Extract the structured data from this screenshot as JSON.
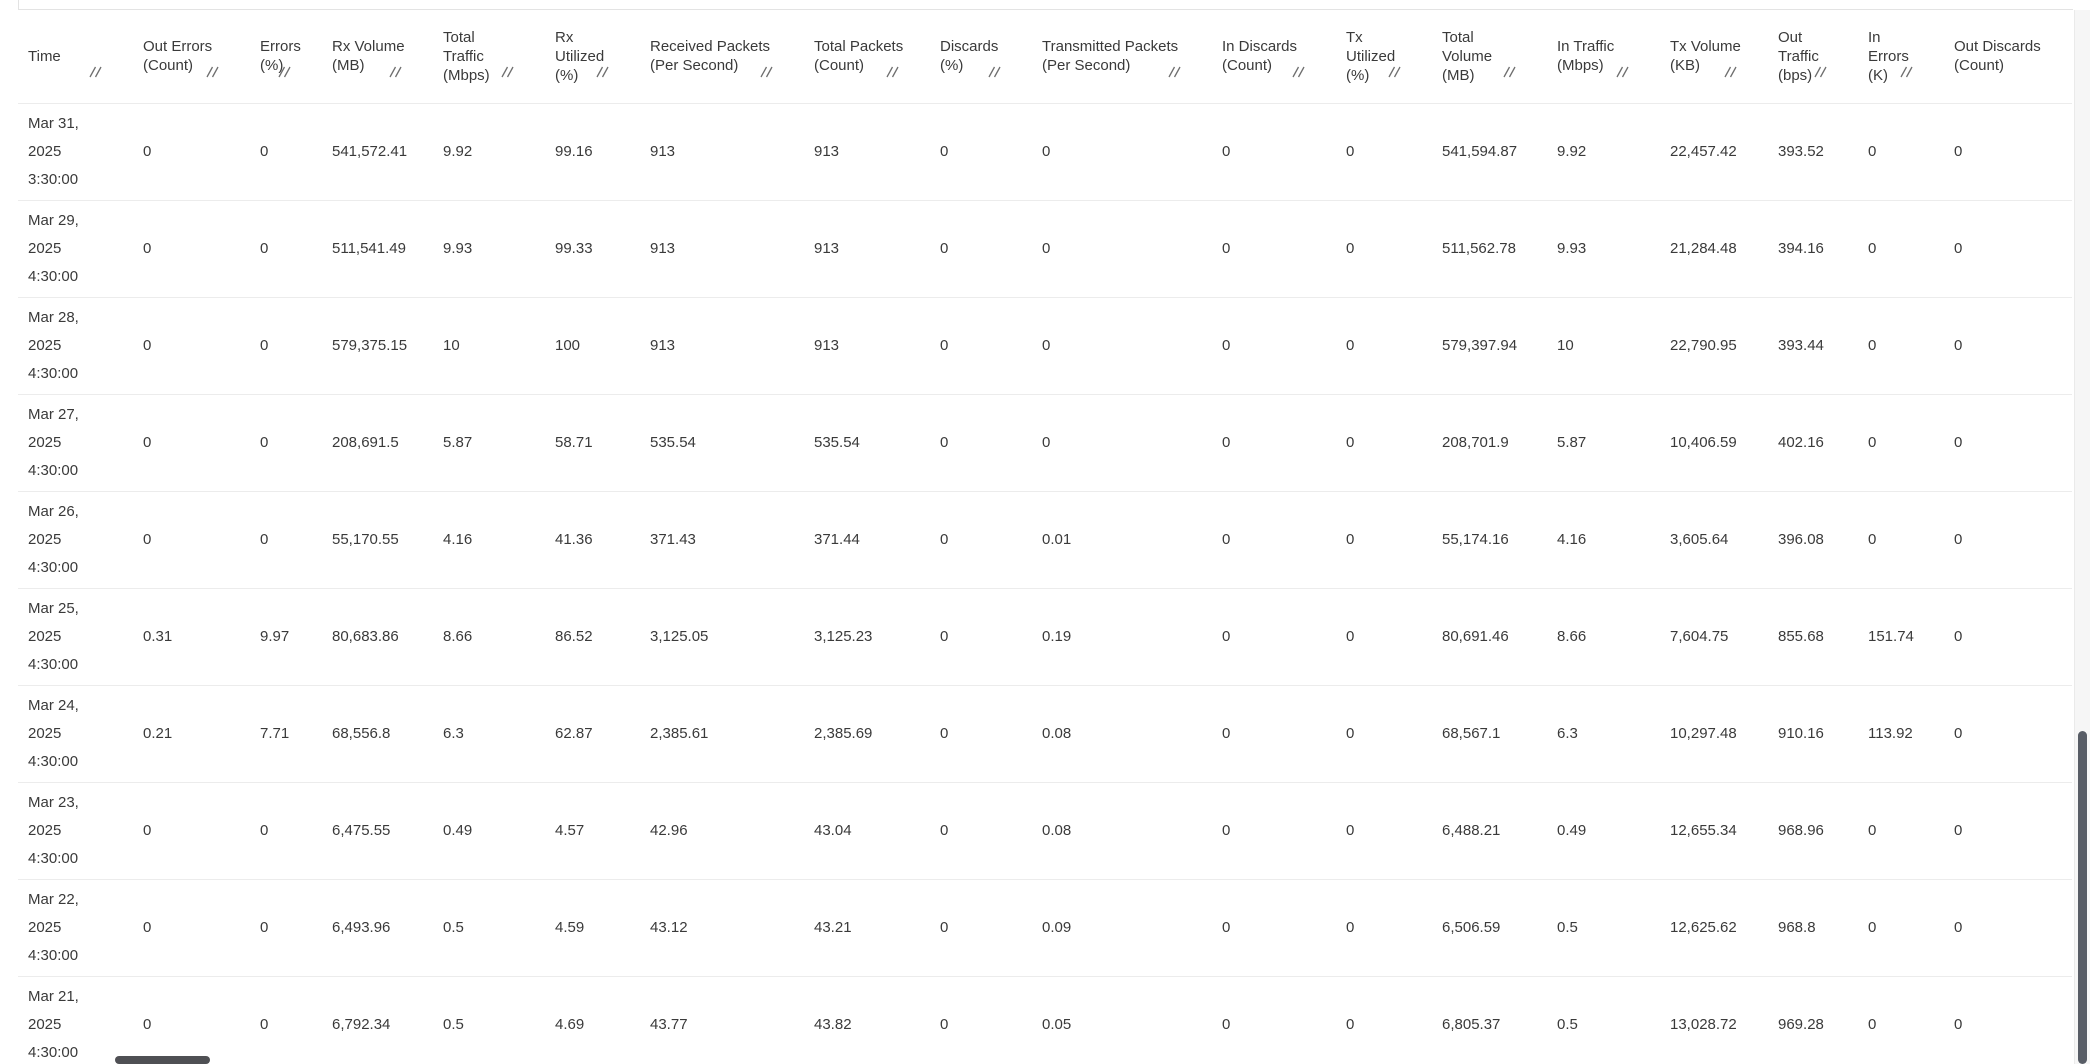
{
  "colors": {
    "text": "#3a3a3a",
    "row_divider": "#ececec",
    "resize_handle": "#6e6e6e",
    "scrollbar_thumb": "#585d66",
    "scrollbar_track": "#f6f6f6"
  },
  "icons": {
    "column_resize": "column-resize-handle-icon"
  },
  "table": {
    "columns": [
      {
        "label": "Time",
        "resizable": true
      },
      {
        "label": "Out Errors\n(Count)",
        "resizable": true
      },
      {
        "label": "Errors\n(%)",
        "resizable": true
      },
      {
        "label": "Rx Volume\n(MB)",
        "resizable": true
      },
      {
        "label": "Total Traffic\n(Mbps)",
        "resizable": true
      },
      {
        "label": "Rx\nUtilized\n(%)",
        "resizable": true
      },
      {
        "label": "Received Packets\n(Per Second)",
        "resizable": true
      },
      {
        "label": "Total Packets\n(Count)",
        "resizable": true
      },
      {
        "label": "Discards\n(%)",
        "resizable": true
      },
      {
        "label": "Transmitted Packets\n(Per Second)",
        "resizable": true
      },
      {
        "label": "In Discards\n(Count)",
        "resizable": true
      },
      {
        "label": "Tx\nUtilized\n(%)",
        "resizable": true
      },
      {
        "label": "Total\nVolume\n(MB)",
        "resizable": true
      },
      {
        "label": "In Traffic\n(Mbps)",
        "resizable": true
      },
      {
        "label": "Tx Volume\n(KB)",
        "resizable": true
      },
      {
        "label": "Out\nTraffic\n(bps)",
        "resizable": true
      },
      {
        "label": "In\nErrors\n(K)",
        "resizable": true
      },
      {
        "label": "Out Discards\n(Count)",
        "resizable": false
      }
    ],
    "rows": [
      {
        "time": "Mar 31,\n2025\n3:30:00",
        "values": [
          "0",
          "0",
          "541,572.41",
          "9.92",
          "99.16",
          "913",
          "913",
          "0",
          "0",
          "0",
          "0",
          "541,594.87",
          "9.92",
          "22,457.42",
          "393.52",
          "0",
          "0"
        ]
      },
      {
        "time": "Mar 29,\n2025\n4:30:00",
        "values": [
          "0",
          "0",
          "511,541.49",
          "9.93",
          "99.33",
          "913",
          "913",
          "0",
          "0",
          "0",
          "0",
          "511,562.78",
          "9.93",
          "21,284.48",
          "394.16",
          "0",
          "0"
        ]
      },
      {
        "time": "Mar 28,\n2025\n4:30:00",
        "values": [
          "0",
          "0",
          "579,375.15",
          "10",
          "100",
          "913",
          "913",
          "0",
          "0",
          "0",
          "0",
          "579,397.94",
          "10",
          "22,790.95",
          "393.44",
          "0",
          "0"
        ]
      },
      {
        "time": "Mar 27,\n2025\n4:30:00",
        "values": [
          "0",
          "0",
          "208,691.5",
          "5.87",
          "58.71",
          "535.54",
          "535.54",
          "0",
          "0",
          "0",
          "0",
          "208,701.9",
          "5.87",
          "10,406.59",
          "402.16",
          "0",
          "0"
        ]
      },
      {
        "time": "Mar 26,\n2025\n4:30:00",
        "values": [
          "0",
          "0",
          "55,170.55",
          "4.16",
          "41.36",
          "371.43",
          "371.44",
          "0",
          "0.01",
          "0",
          "0",
          "55,174.16",
          "4.16",
          "3,605.64",
          "396.08",
          "0",
          "0"
        ]
      },
      {
        "time": "Mar 25,\n2025\n4:30:00",
        "values": [
          "0.31",
          "9.97",
          "80,683.86",
          "8.66",
          "86.52",
          "3,125.05",
          "3,125.23",
          "0",
          "0.19",
          "0",
          "0",
          "80,691.46",
          "8.66",
          "7,604.75",
          "855.68",
          "151.74",
          "0"
        ]
      },
      {
        "time": "Mar 24,\n2025\n4:30:00",
        "values": [
          "0.21",
          "7.71",
          "68,556.8",
          "6.3",
          "62.87",
          "2,385.61",
          "2,385.69",
          "0",
          "0.08",
          "0",
          "0",
          "68,567.1",
          "6.3",
          "10,297.48",
          "910.16",
          "113.92",
          "0"
        ]
      },
      {
        "time": "Mar 23,\n2025\n4:30:00",
        "values": [
          "0",
          "0",
          "6,475.55",
          "0.49",
          "4.57",
          "42.96",
          "43.04",
          "0",
          "0.08",
          "0",
          "0",
          "6,488.21",
          "0.49",
          "12,655.34",
          "968.96",
          "0",
          "0"
        ]
      },
      {
        "time": "Mar 22,\n2025\n4:30:00",
        "values": [
          "0",
          "0",
          "6,493.96",
          "0.5",
          "4.59",
          "43.12",
          "43.21",
          "0",
          "0.09",
          "0",
          "0",
          "6,506.59",
          "0.5",
          "12,625.62",
          "968.8",
          "0",
          "0"
        ]
      },
      {
        "time": "Mar 21,\n2025\n4:30:00",
        "values": [
          "0",
          "0",
          "6,792.34",
          "0.5",
          "4.69",
          "43.77",
          "43.82",
          "0",
          "0.05",
          "0",
          "0",
          "6,805.37",
          "0.5",
          "13,028.72",
          "969.28",
          "0",
          "0"
        ]
      }
    ]
  }
}
